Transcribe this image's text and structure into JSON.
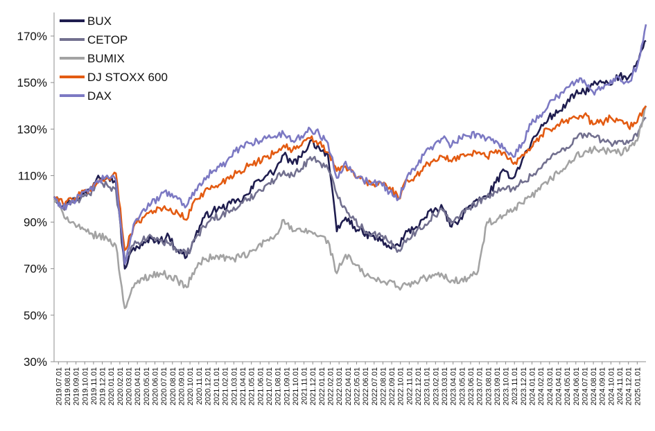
{
  "chart_data": {
    "type": "line",
    "title": "",
    "xlabel": "",
    "ylabel": "",
    "ylim": [
      30,
      170
    ],
    "y_ticks": [
      "30%",
      "50%",
      "70%",
      "90%",
      "110%",
      "130%",
      "150%",
      "170%"
    ],
    "y_tick_values": [
      30,
      50,
      70,
      90,
      110,
      130,
      150,
      170
    ],
    "grid": false,
    "legend_position": "top-left",
    "x_tick_labels": [
      "2019.07.01",
      "2019.08.01",
      "2019.09.01",
      "2019.10.01",
      "2019.11.01",
      "2019.12.01",
      "2020.01.01",
      "2020.02.01",
      "2020.03.01",
      "2020.04.01",
      "2020.05.01",
      "2020.06.01",
      "2020.07.01",
      "2020.08.01",
      "2020.09.01",
      "2020.10.01",
      "2020.11.01",
      "2020.12.01",
      "2021.01.01",
      "2021.02.01",
      "2021.03.01",
      "2021.04.01",
      "2021.05.01",
      "2021.06.01",
      "2021.07.01",
      "2021.08.01",
      "2021.09.01",
      "2021.10.01",
      "2021.11.01",
      "2021.12.01",
      "2022.01.01",
      "2022.02.01",
      "2022.03.01",
      "2022.04.01",
      "2022.05.01",
      "2022.06.01",
      "2022.07.01",
      "2022.08.01",
      "2022.09.01",
      "2022.10.01",
      "2022.11.01",
      "2022.12.01",
      "2023.01.01",
      "2023.02.01",
      "2023.03.01",
      "2023.04.01",
      "2023.05.01",
      "2023.06.01",
      "2023.07.01",
      "2023.08.01",
      "2023.09.01",
      "2023.10.01",
      "2023.11.01",
      "2023.12.01",
      "2024.01.01",
      "2024.02.01",
      "2024.03.01",
      "2024.04.01",
      "2024.05.01",
      "2024.06.01",
      "2024.07.01",
      "2024.08.01",
      "2024.09.01",
      "2024.10.01",
      "2024.11.01",
      "2024.12.01",
      "2025.01.01"
    ],
    "x": [
      "2019.07.01",
      "2019.08.01",
      "2019.09.01",
      "2019.10.01",
      "2019.11.01",
      "2019.12.01",
      "2020.01.01",
      "2020.02.01",
      "2020.03.01",
      "2020.04.01",
      "2020.05.01",
      "2020.06.01",
      "2020.07.01",
      "2020.08.01",
      "2020.09.01",
      "2020.10.01",
      "2020.11.01",
      "2020.12.01",
      "2021.01.01",
      "2021.02.01",
      "2021.03.01",
      "2021.04.01",
      "2021.05.01",
      "2021.06.01",
      "2021.07.01",
      "2021.08.01",
      "2021.09.01",
      "2021.10.01",
      "2021.11.01",
      "2021.12.01",
      "2022.01.01",
      "2022.02.01",
      "2022.03.01",
      "2022.04.01",
      "2022.05.01",
      "2022.06.01",
      "2022.07.01",
      "2022.08.01",
      "2022.09.01",
      "2022.10.01",
      "2022.11.01",
      "2022.12.01",
      "2023.01.01",
      "2023.02.01",
      "2023.03.01",
      "2023.04.01",
      "2023.05.01",
      "2023.06.01",
      "2023.07.01",
      "2023.08.01",
      "2023.09.01",
      "2023.10.01",
      "2023.11.01",
      "2023.12.01",
      "2024.01.01",
      "2024.02.01",
      "2024.03.01",
      "2024.04.01",
      "2024.05.01",
      "2024.06.01",
      "2024.07.01",
      "2024.08.01",
      "2024.09.01",
      "2024.10.01",
      "2024.11.01",
      "2024.12.01",
      "2025.01.01",
      "2025.02.01"
    ],
    "series": [
      {
        "name": "BUX",
        "color": "#1f1d4f",
        "values": [
          101,
          97,
          99,
          101,
          104,
          110,
          110,
          107,
          70,
          79,
          80,
          83,
          82,
          84,
          78,
          75,
          84,
          92,
          95,
          96,
          98,
          99,
          102,
          108,
          110,
          112,
          119,
          115,
          118,
          125,
          122,
          119,
          86,
          92,
          88,
          85,
          84,
          82,
          79,
          80,
          86,
          88,
          92,
          95,
          96,
          88,
          92,
          97,
          99,
          101,
          107,
          112,
          109,
          117,
          124,
          130,
          135,
          137,
          141,
          145,
          146,
          149,
          150,
          149,
          153,
          152,
          159,
          168
        ]
      },
      {
        "name": "CETOP",
        "color": "#72708f",
        "values": [
          101,
          96,
          99,
          100,
          102,
          107,
          106,
          104,
          74,
          80,
          82,
          84,
          82,
          81,
          78,
          76,
          83,
          88,
          92,
          93,
          95,
          97,
          100,
          103,
          106,
          108,
          112,
          110,
          113,
          118,
          116,
          113,
          102,
          96,
          91,
          87,
          85,
          84,
          81,
          78,
          83,
          86,
          89,
          93,
          95,
          90,
          93,
          96,
          99,
          101,
          103,
          104,
          105,
          107,
          110,
          113,
          117,
          120,
          122,
          126,
          128,
          127,
          125,
          124,
          125,
          124,
          127,
          135
        ]
      },
      {
        "name": "BUMIX",
        "color": "#a3a3a3",
        "values": [
          100,
          94,
          90,
          87,
          85,
          84,
          83,
          80,
          53,
          62,
          66,
          67,
          68,
          67,
          65,
          62,
          70,
          74,
          75,
          75,
          74,
          75,
          76,
          79,
          82,
          84,
          91,
          86,
          86,
          86,
          84,
          82,
          68,
          76,
          72,
          68,
          66,
          64,
          65,
          62,
          63,
          64,
          66,
          67,
          67,
          65,
          65,
          66,
          69,
          90,
          90,
          93,
          95,
          98,
          101,
          104,
          108,
          111,
          114,
          118,
          120,
          121,
          121,
          120,
          120,
          121,
          125,
          140
        ]
      },
      {
        "name": "DJ STOXX 600",
        "color": "#e35b12",
        "values": [
          101,
          98,
          100,
          102,
          104,
          107,
          109,
          111,
          78,
          88,
          92,
          95,
          96,
          95,
          94,
          91,
          100,
          103,
          105,
          107,
          110,
          112,
          114,
          116,
          118,
          120,
          123,
          121,
          123,
          126,
          124,
          120,
          112,
          114,
          110,
          108,
          106,
          107,
          105,
          100,
          108,
          110,
          114,
          117,
          118,
          116,
          119,
          119,
          120,
          118,
          121,
          120,
          115,
          119,
          122,
          127,
          130,
          132,
          134,
          135,
          136,
          132,
          133,
          135,
          134,
          131,
          133,
          140
        ]
      },
      {
        "name": "DAX",
        "color": "#7c79c3",
        "values": [
          101,
          96,
          99,
          101,
          104,
          107,
          110,
          108,
          72,
          89,
          95,
          98,
          101,
          103,
          100,
          97,
          104,
          109,
          112,
          114,
          118,
          122,
          124,
          125,
          126,
          127,
          128,
          125,
          127,
          130,
          128,
          124,
          109,
          116,
          111,
          108,
          107,
          107,
          103,
          100,
          110,
          114,
          120,
          123,
          126,
          123,
          126,
          127,
          128,
          126,
          125,
          122,
          118,
          124,
          132,
          136,
          141,
          144,
          148,
          150,
          151,
          146,
          148,
          151,
          152,
          150,
          157,
          175
        ]
      }
    ]
  }
}
